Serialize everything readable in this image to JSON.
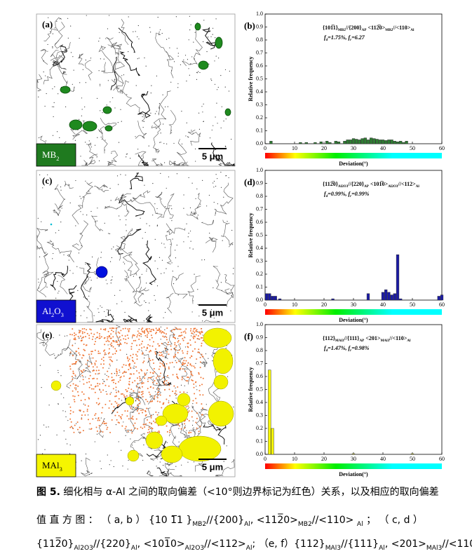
{
  "figure": {
    "panels": [
      {
        "label": "(a)",
        "phase": [
          "MB",
          "2"
        ],
        "scale": "5 μm"
      },
      {
        "label": "(c)",
        "phase": [
          "Al",
          "2",
          "O",
          "3"
        ],
        "scale": "5 μm"
      },
      {
        "label": "(e)",
        "phase": [
          "MAl",
          "3"
        ],
        "scale": "5 μm"
      }
    ],
    "caption": {
      "lead": "图 5.",
      "lines": [
        [
          "细化相与 α-Al 之间的取向偏差（<10°则边界标记为红色）关系，以及相应的取向偏差"
        ],
        [
          "值 直 方 图 ： （ a, b ） {10 1̅1 }",
          "MB2",
          "//{200}",
          "Al",
          ", <112̅0>",
          "MB2",
          "//<110> ",
          "Al",
          " ； （ c, d ）"
        ],
        [
          "{112̅0}",
          "Al2O3",
          "//{220}",
          "Al",
          ", <101̅0>",
          "Al2O3",
          "//<112>",
          "Al",
          "; （e, f）{112}",
          "MAl3",
          "//{111}",
          "Al",
          ", <201>",
          "MAl3",
          "//<110>",
          "Al"
        ]
      ]
    }
  },
  "chart_data": [
    {
      "type": "bar",
      "label": "(b)",
      "annotation": [
        [
          "{101̅1}",
          "MB2",
          "//{200}",
          "AP",
          " <112̅0>",
          "MB2",
          "//<110>",
          "Al"
        ],
        [
          "f",
          "d",
          "=1.75%, f",
          "r",
          "=6.27"
        ]
      ],
      "xlabel": "Deviation(°)",
      "ylabel": "Relative frequency",
      "x": [
        2,
        12,
        14,
        17,
        19,
        21,
        22,
        24,
        25,
        27,
        28,
        29,
        30,
        31,
        32,
        33,
        34,
        35,
        36,
        37,
        38,
        39,
        40,
        41,
        42,
        43,
        44,
        45,
        46,
        47,
        48
      ],
      "values": [
        0.02,
        0.01,
        0.01,
        0.01,
        0.015,
        0.02,
        0.01,
        0.02,
        0.015,
        0.02,
        0.03,
        0.03,
        0.04,
        0.035,
        0.03,
        0.04,
        0.045,
        0.03,
        0.045,
        0.04,
        0.035,
        0.03,
        0.03,
        0.025,
        0.03,
        0.03,
        0.02,
        0.015,
        0.02,
        0.01,
        0.02
      ],
      "color": "#2e7d32",
      "xlim": [
        0,
        60
      ],
      "xticks": [
        0,
        10,
        20,
        30,
        40,
        50,
        60
      ],
      "ylim": [
        0,
        1
      ],
      "yticks": [
        {
          "value": 0,
          "label": "0.0"
        },
        0.1,
        0.2,
        0.3,
        0.4,
        0.5,
        0.6,
        0.7,
        0.8,
        0.9,
        {
          "value": 1,
          "label": "1.0"
        }
      ]
    },
    {
      "type": "bar",
      "label": "(d)",
      "annotation": [
        [
          "{112̅0}",
          "Al2O3",
          "//{220}",
          "AP",
          " <101̅0>",
          "Al2O3",
          "//<112>",
          "Al"
        ],
        [
          "f",
          "d",
          "=0.99%, f",
          "r",
          "=0.99%"
        ]
      ],
      "xlabel": "Deviation(°)",
      "ylabel": "Relative frequency",
      "x": [
        0.5,
        1.5,
        2.5,
        3.5,
        5,
        23,
        35,
        40,
        41,
        42,
        43,
        44,
        45,
        46,
        59,
        60
      ],
      "values": [
        0.05,
        0.05,
        0.03,
        0.03,
        0.01,
        0.01,
        0.05,
        0.06,
        0.08,
        0.06,
        0.04,
        0.05,
        0.35,
        0.01,
        0.03,
        0.04
      ],
      "color": "#1a1aa6",
      "xlim": [
        0,
        60
      ],
      "xticks": [
        0,
        10,
        20,
        30,
        40,
        50,
        60
      ],
      "ylim": [
        0,
        1
      ],
      "yticks": [
        {
          "value": 0,
          "label": "0.0"
        },
        0.1,
        0.2,
        0.3,
        0.4,
        0.5,
        0.6,
        0.7,
        0.8,
        0.9,
        {
          "value": 1,
          "label": "1.0"
        }
      ]
    },
    {
      "type": "bar",
      "label": "(f)",
      "annotation": [
        [
          "{112}",
          "MAl3",
          "//{111}",
          "AP",
          " <201>",
          "MAl3",
          "//<110>",
          "Al"
        ],
        [
          "f",
          "d",
          "=1.47%, f",
          "r",
          "=0.98%"
        ]
      ],
      "xlabel": "Deviation(°)",
      "ylabel": "Relative frequency",
      "x": [
        1.5,
        2.5,
        30,
        50
      ],
      "values": [
        0.65,
        0.2,
        0.005,
        0.005
      ],
      "color": "#ffff00",
      "xlim": [
        0,
        60
      ],
      "xticks": [
        0,
        10,
        20,
        30,
        40,
        50,
        60
      ],
      "ylim": [
        0,
        1
      ],
      "yticks": [
        {
          "value": 0,
          "label": "0.0"
        },
        0.1,
        0.2,
        0.3,
        0.4,
        0.5,
        0.6,
        0.7,
        0.8,
        0.9,
        {
          "value": 1,
          "label": "1.0"
        }
      ]
    }
  ]
}
